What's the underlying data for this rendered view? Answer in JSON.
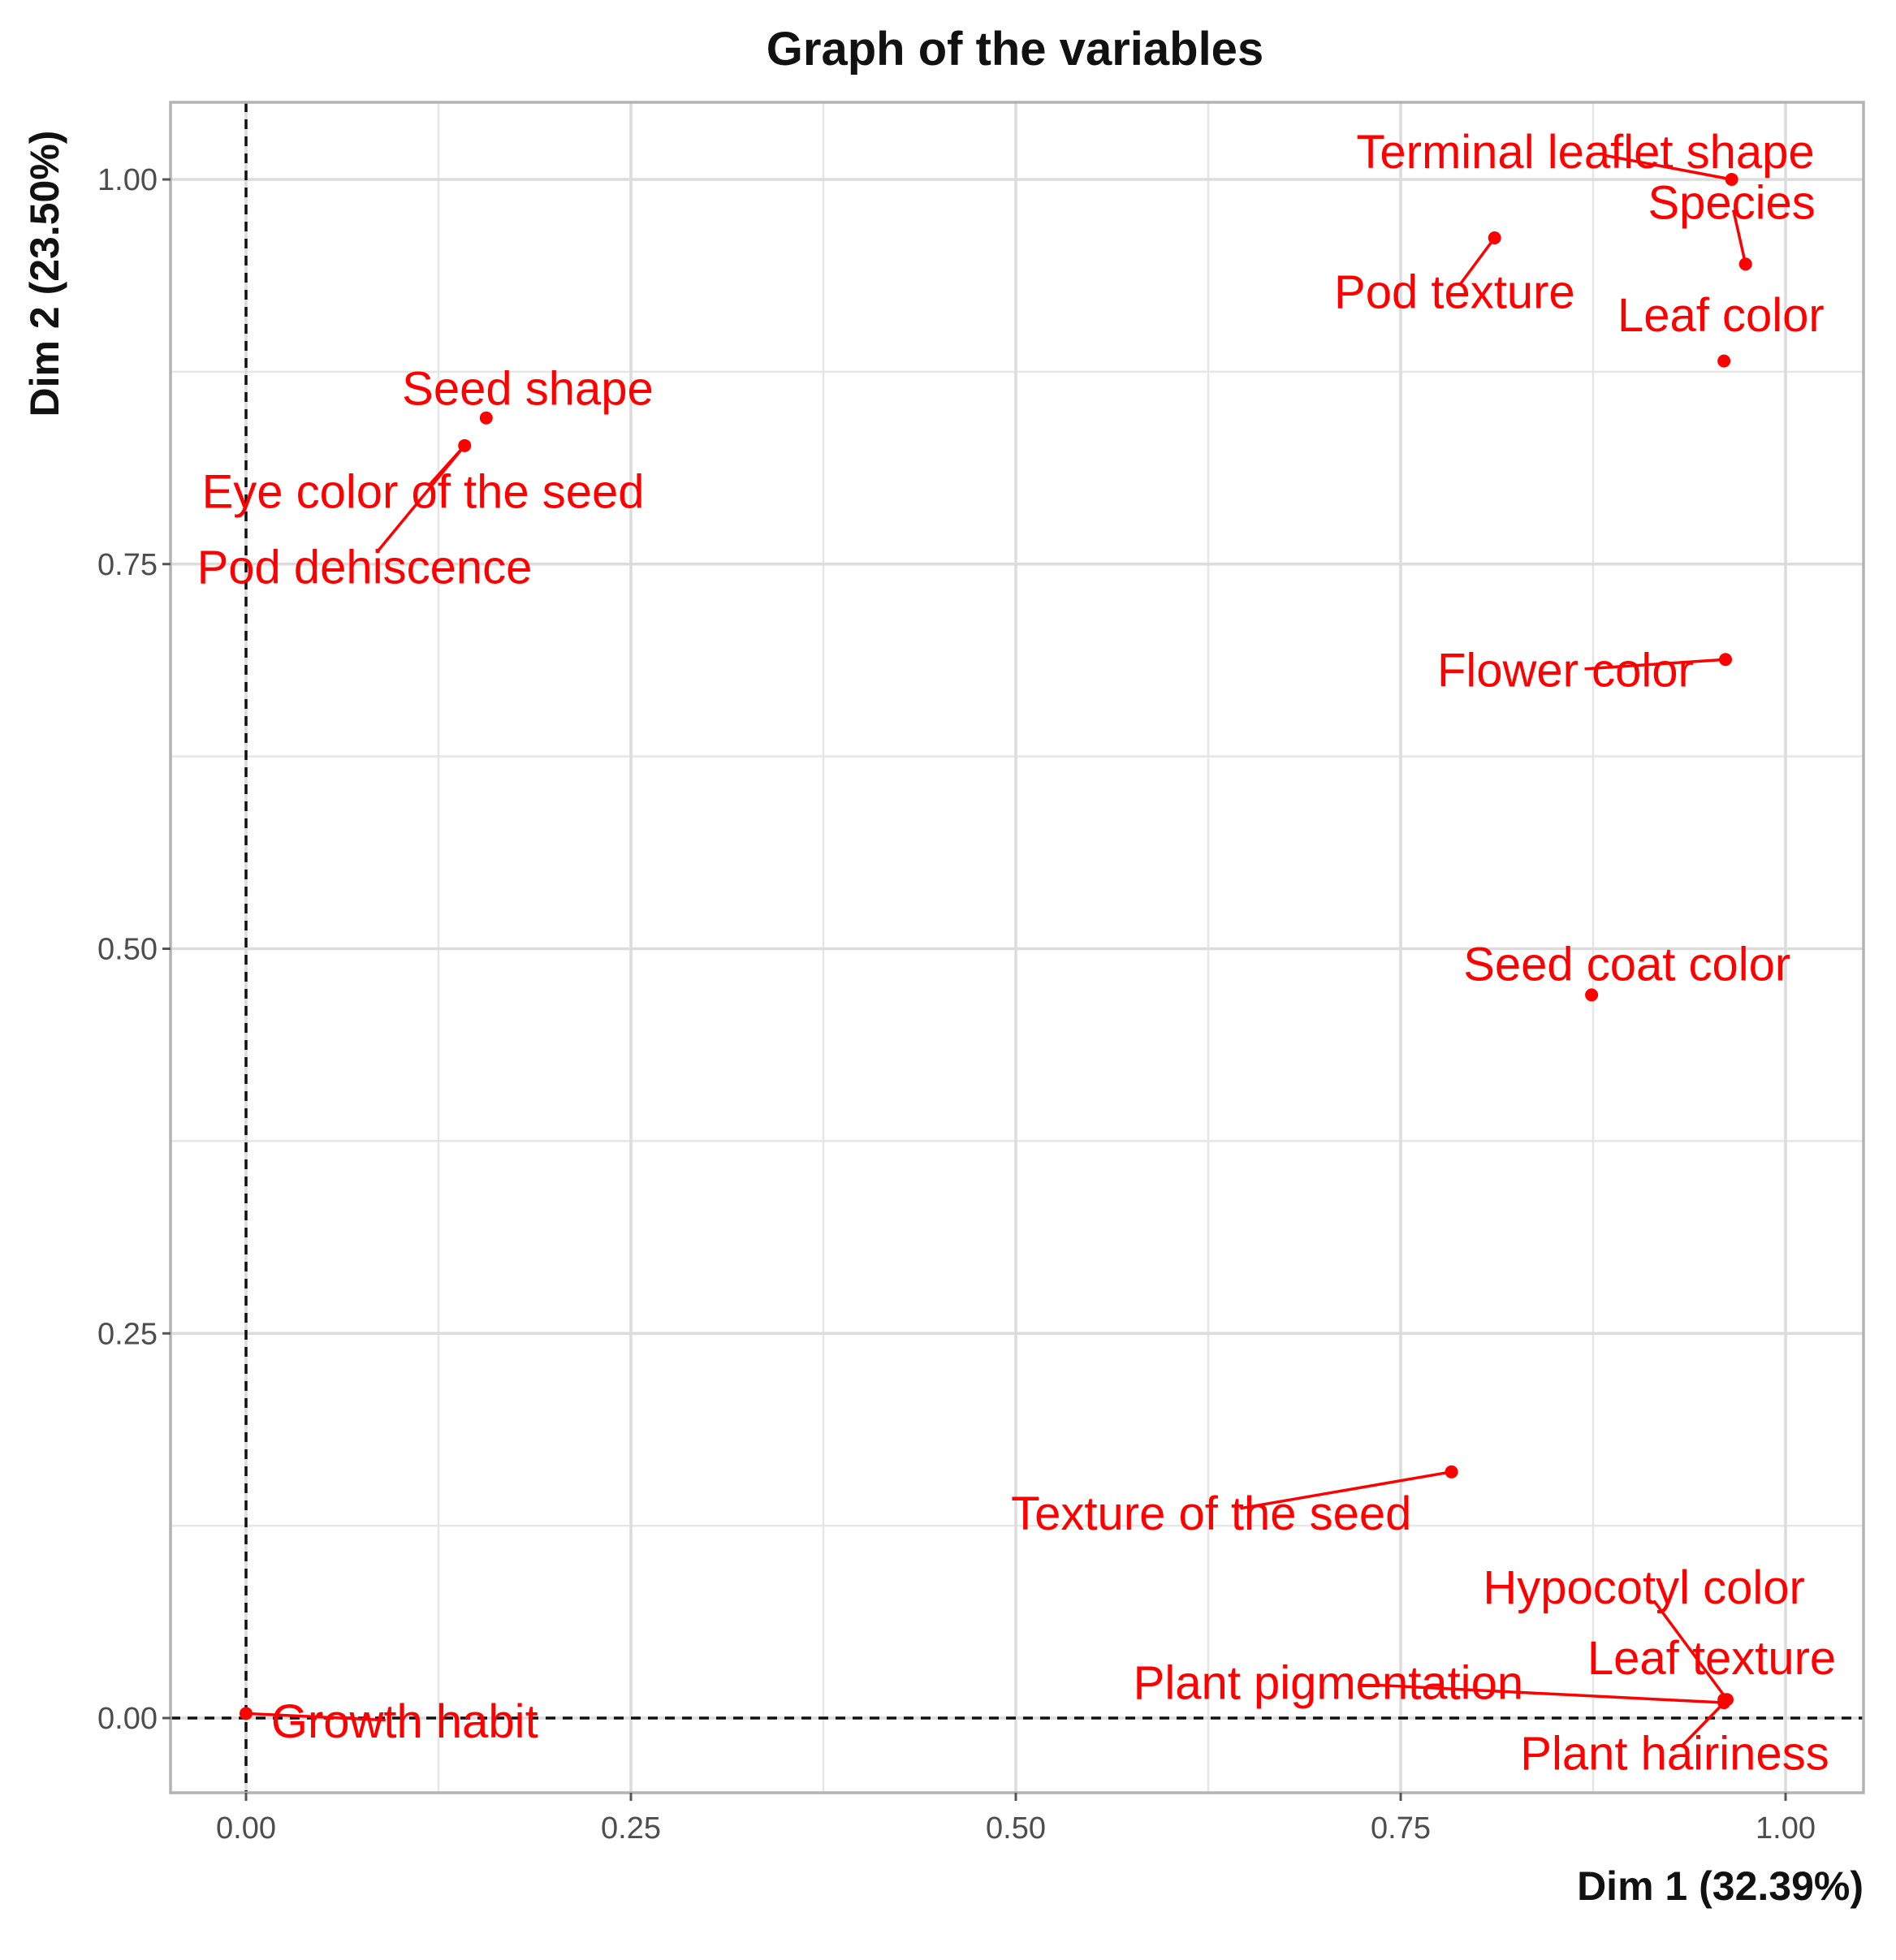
{
  "chart_data": {
    "type": "scatter",
    "title": "Graph of the variables",
    "xlabel": "Dim 1 (32.39%)",
    "ylabel": "Dim 2 (23.50%)",
    "xlim": [
      -0.05,
      1.05
    ],
    "ylim": [
      -0.05,
      1.05
    ],
    "xticks": [
      {
        "value": 0.0,
        "label": "0.00"
      },
      {
        "value": 0.25,
        "label": "0.25"
      },
      {
        "value": 0.5,
        "label": "0.50"
      },
      {
        "value": 0.75,
        "label": "0.75"
      },
      {
        "value": 1.0,
        "label": "1.00"
      }
    ],
    "yticks": [
      {
        "value": 0.0,
        "label": "0.00"
      },
      {
        "value": 0.25,
        "label": "0.25"
      },
      {
        "value": 0.5,
        "label": "0.50"
      },
      {
        "value": 0.75,
        "label": "0.75"
      },
      {
        "value": 1.0,
        "label": "1.00"
      }
    ],
    "grid": true,
    "reference_lines": {
      "x": 0,
      "y": 0,
      "style": "dashed"
    },
    "point_color": "#ff0000",
    "points": [
      {
        "label": "Terminal leaflet shape",
        "x": 0.965,
        "y": 1.0,
        "label_x": 0.87,
        "label_y": 1.018
      },
      {
        "label": "Species",
        "x": 0.974,
        "y": 0.945,
        "label_x": 0.965,
        "label_y": 0.985
      },
      {
        "label": "Leaf color",
        "x": 0.96,
        "y": 0.882,
        "label_x": 0.958,
        "label_y": 0.912
      },
      {
        "label": "Pod texture",
        "x": 0.811,
        "y": 0.962,
        "label_x": 0.785,
        "label_y": 0.927
      },
      {
        "label": "Seed shape",
        "x": 0.156,
        "y": 0.845,
        "label_x": 0.183,
        "label_y": 0.864
      },
      {
        "label": "Eye color of the seed",
        "x": 0.142,
        "y": 0.827,
        "label_x": 0.115,
        "label_y": 0.797
      },
      {
        "label": "Pod dehiscence",
        "x": 0.142,
        "y": 0.827,
        "label_x": 0.077,
        "label_y": 0.748
      },
      {
        "label": "Flower color",
        "x": 0.961,
        "y": 0.688,
        "label_x": 0.857,
        "label_y": 0.681
      },
      {
        "label": "Seed coat color",
        "x": 0.874,
        "y": 0.47,
        "label_x": 0.897,
        "label_y": 0.49
      },
      {
        "label": "Texture of the seed",
        "x": 0.783,
        "y": 0.16,
        "label_x": 0.627,
        "label_y": 0.133
      },
      {
        "label": "Hypocotyl color",
        "x": 0.962,
        "y": 0.012,
        "label_x": 0.908,
        "label_y": 0.085
      },
      {
        "label": "Leaf texture",
        "x": 0.96,
        "y": 0.012,
        "label_x": 0.952,
        "label_y": 0.039
      },
      {
        "label": "Plant pigmentation",
        "x": 0.96,
        "y": 0.01,
        "label_x": 0.703,
        "label_y": 0.023
      },
      {
        "label": "Plant hairiness",
        "x": 0.962,
        "y": 0.012,
        "label_x": 0.928,
        "label_y": -0.023
      },
      {
        "label": "Growth habit",
        "x": 0.0,
        "y": 0.003,
        "label_x": 0.103,
        "label_y": -0.002
      }
    ]
  }
}
